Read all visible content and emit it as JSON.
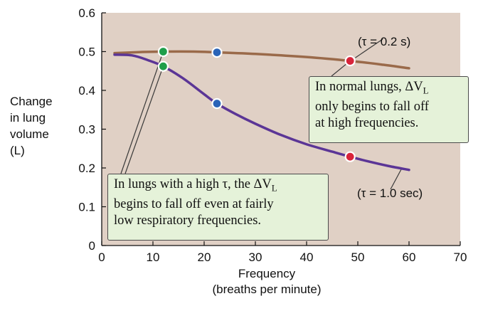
{
  "chart_data": {
    "type": "line",
    "xlabel_lines": [
      "Frequency",
      "(breaths per minute)"
    ],
    "ylabel_lines": [
      "Change",
      "in lung",
      "volume",
      "(L)"
    ],
    "xlim": [
      0,
      70
    ],
    "ylim": [
      0,
      0.6
    ],
    "x_ticks": [
      "0",
      "10",
      "20",
      "30",
      "40",
      "50",
      "60",
      "70"
    ],
    "y_ticks": [
      "0",
      "0.1",
      "0.2",
      "0.3",
      "0.4",
      "0.5",
      "0.6"
    ],
    "grid": false,
    "series": [
      {
        "name": "(τ = 0.2 s)",
        "color": "#9a6a4a",
        "points": [
          [
            2.5,
            0.496
          ],
          [
            8,
            0.499
          ],
          [
            12,
            0.5
          ],
          [
            18,
            0.5
          ],
          [
            22.5,
            0.498
          ],
          [
            30,
            0.494
          ],
          [
            40,
            0.486
          ],
          [
            48.5,
            0.476
          ],
          [
            55,
            0.466
          ],
          [
            60,
            0.457
          ]
        ]
      },
      {
        "name": "(τ = 1.0 sec)",
        "color": "#5b3596",
        "points": [
          [
            2.5,
            0.492
          ],
          [
            6,
            0.49
          ],
          [
            9,
            0.478
          ],
          [
            12,
            0.462
          ],
          [
            16,
            0.43
          ],
          [
            20,
            0.39
          ],
          [
            22.5,
            0.366
          ],
          [
            26,
            0.34
          ],
          [
            30,
            0.314
          ],
          [
            35,
            0.285
          ],
          [
            40,
            0.261
          ],
          [
            45,
            0.242
          ],
          [
            48.5,
            0.229
          ],
          [
            52,
            0.217
          ],
          [
            56,
            0.205
          ],
          [
            60,
            0.195
          ]
        ]
      }
    ],
    "markers": [
      {
        "x": 12,
        "y": 0.5,
        "color": "#1f9e4a"
      },
      {
        "x": 12,
        "y": 0.462,
        "color": "#1f9e4a"
      },
      {
        "x": 22.5,
        "y": 0.498,
        "color": "#2a64b8"
      },
      {
        "x": 22.5,
        "y": 0.366,
        "color": "#2a64b8"
      },
      {
        "x": 48.5,
        "y": 0.476,
        "color": "#d8243a"
      },
      {
        "x": 48.5,
        "y": 0.229,
        "color": "#d8243a"
      }
    ],
    "annotations": {
      "normal": [
        "In normal lungs, ΔV",
        "L",
        "only begins to fall off",
        "at high frequencies."
      ],
      "high_tau": [
        "In lungs with a high τ, the ΔV",
        "L",
        "begins to fall off even at fairly",
        "low respiratory frequencies."
      ]
    }
  },
  "colors": {
    "plot_background": "#e0d0c5",
    "callout_background": "#e5f2d9",
    "axis": "#111111"
  }
}
